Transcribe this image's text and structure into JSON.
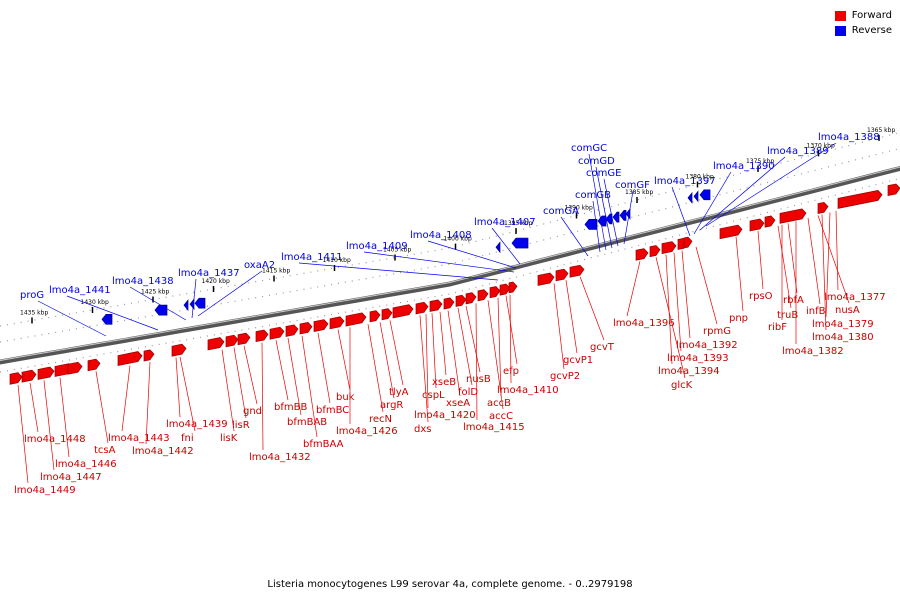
{
  "legend": {
    "forward_label": "Forward",
    "reverse_label": "Reverse",
    "forward_color": "#ee0000",
    "reverse_color": "#0000ee"
  },
  "caption": "Listeria monocytogenes L99 serovar 4a, complete genome. - 0..2979198",
  "scale_ticks": [
    "1435 kbp",
    "1430 kbp",
    "1425 kbp",
    "1420 kbp",
    "1415 kbp",
    "1410 kbp",
    "1405 kbp",
    "1400 kbp",
    "1395 kbp",
    "1390 kbp",
    "1385 kbp",
    "1380 kbp",
    "1375 kbp",
    "1370 kbp",
    "1365 kbp"
  ],
  "reverse_genes": [
    "proG",
    "lmo4a_1441",
    "lmo4a_1438",
    "lmo4a_1437",
    "oxaA2",
    "lmo4a_1411",
    "lmo4a_1409",
    "lmo4a_1408",
    "lmo4a_1407",
    "comGA",
    "comGB",
    "comGC",
    "comGD",
    "comGE",
    "comGF",
    "lmo4a_1397",
    "lmo4a_1390",
    "lmo4a_1389",
    "lmo4a_1388"
  ],
  "forward_genes": [
    "lmo4a_1449",
    "lmo4a_1448",
    "lmo4a_1447",
    "lmo4a_1446",
    "tcsA",
    "lmo4a_1443",
    "lmo4a_1442",
    "fni",
    "lmo4a_1439",
    "lisK",
    "lisR",
    "gnd",
    "lmo4a_1432",
    "bfmBB",
    "bfmBAB",
    "bfmBAA",
    "bfmBC",
    "buk",
    "lmo4a_1426",
    "recN",
    "argR",
    "tlyA",
    "dxs",
    "lmo4a_1420",
    "cspL",
    "xseB",
    "xseA",
    "folD",
    "nusB",
    "lmo4a_1415",
    "accC",
    "accB",
    "efp",
    "lmo4a_1410",
    "gcvP2",
    "gcvP1",
    "gcvT",
    "lmo4a_1396",
    "glcK",
    "lmo4a_1394",
    "lmo4a_1393",
    "lmo4a_1392",
    "rpmG",
    "pnp",
    "rpsO",
    "truB",
    "ribF",
    "rbfA",
    "infB",
    "lmo4a_1382",
    "nusA",
    "lmo4a_1380",
    "lmo4a_1379",
    "lmo4a_1377"
  ]
}
